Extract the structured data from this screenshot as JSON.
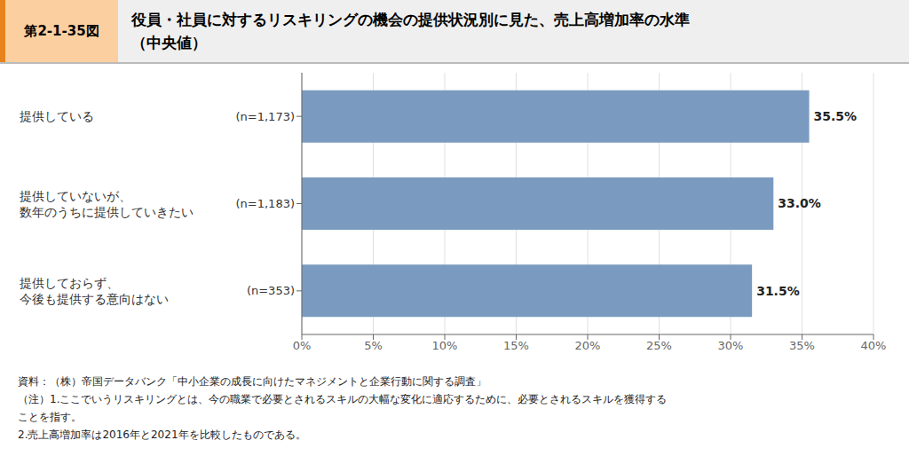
{
  "chart_data": {
    "type": "bar",
    "orientation": "horizontal",
    "title": "役員・社員に対するリスキリングの機会の提供状況別に見た、売上高増加率の水準",
    "subtitle": "（中央値）",
    "annotations": [
      "第2-1-35図",
      "資料：（株）帝国データバンク「中小企業の成長に向けたマネジメントと企業行動に関する調査」",
      "（注）1.ここでいうリスキリングとは、今の職業で必要とされるスキルの大幅な変化に適応するために、必要とされるスキルを獲得する",
      "ことを指す。",
      "2.売上高増加率は2016年と2021年を比較したものである。"
    ],
    "categories": [
      "提供している",
      "提供していないが、\n数年のうちに提供していきたい",
      "提供しておらず、\n今後も提供する意向はない"
    ],
    "n_labels": [
      "(n=1,173)",
      "(n=1,183)",
      "(n=353)"
    ],
    "values": [
      35.5,
      33.0,
      31.5
    ],
    "value_labels": [
      "35.5%",
      "33.0%",
      "31.5%"
    ],
    "data_labels": true,
    "color": "#7A9BBF",
    "xlim": [
      0,
      40
    ],
    "xticks": [
      {
        "value": 0,
        "label": "0%"
      },
      {
        "value": 5,
        "label": "5%"
      },
      {
        "value": 10,
        "label": "10%"
      },
      {
        "value": 15,
        "label": "15%"
      },
      {
        "value": 20,
        "label": "20%"
      },
      {
        "value": 25,
        "label": "25%"
      },
      {
        "value": 30,
        "label": "30%"
      },
      {
        "value": 35,
        "label": "35%"
      },
      {
        "value": 40,
        "label": "40%"
      }
    ],
    "grid": true
  }
}
